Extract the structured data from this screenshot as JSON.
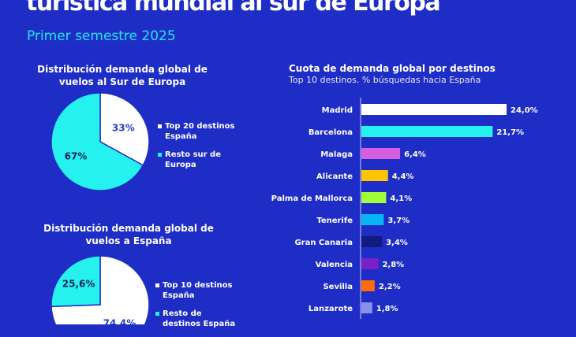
{
  "header": {
    "title": "turística mundial al sur de Europa",
    "subtitle": "Primer semestre 2025"
  },
  "colors": {
    "background": "#1f2dc7",
    "accent": "#25e6ef"
  },
  "chart_data": [
    {
      "type": "pie",
      "title": "Distribución demanda global de vuelos al Sur de Europa",
      "title_lines": [
        "Distribución demanda global de",
        "vuelos al Sur de Europa"
      ],
      "slices": [
        {
          "label": "Top 20 destinos España",
          "value": 33,
          "display": "33%",
          "color": "#ffffff",
          "label_color": "#2b3bc9",
          "legend_lines": [
            "Top 20 destinos",
            "España"
          ]
        },
        {
          "label": "Resto sur de Europa",
          "value": 67,
          "display": "67%",
          "color": "#25f1ef",
          "label_color": "#10205a",
          "legend_lines": [
            "Resto sur de",
            "Europa"
          ]
        }
      ]
    },
    {
      "type": "pie",
      "title": "Distribución demanda global de vuelos a España",
      "title_lines": [
        "Distribución demanda global de",
        "vuelos a España"
      ],
      "slices": [
        {
          "label": "Top 10 destinos España",
          "value": 74.4,
          "display": "74,4%",
          "color": "#ffffff",
          "label_color": "#2b3bc9",
          "legend_lines": [
            "Top 10 destinos",
            "España"
          ]
        },
        {
          "label": "Resto de destinos España",
          "value": 25.6,
          "display": "25,6%",
          "color": "#25f1ef",
          "label_color": "#10205a",
          "legend_lines": [
            "Resto de",
            "destinos España"
          ]
        }
      ]
    },
    {
      "type": "bar",
      "orientation": "horizontal",
      "title": "Cuota de demanda global por destinos",
      "subtitle": "Top 10 destinos. % búsquedas hacia España",
      "categories": [
        "Madrid",
        "Barcelona",
        "Malaga",
        "Alicante",
        "Palma de Mallorca",
        "Tenerife",
        "Gran Canaria",
        "Valencia",
        "Sevilla",
        "Lanzarote"
      ],
      "values": [
        24.0,
        21.7,
        6.4,
        4.4,
        4.1,
        3.7,
        3.4,
        2.8,
        2.2,
        1.8
      ],
      "value_labels": [
        "24,0%",
        "21,7%",
        "6,4%",
        "4,4%",
        "4,1%",
        "3,7%",
        "3,4%",
        "2,8%",
        "2,2%",
        "1,8%"
      ],
      "colors": [
        "#ffffff",
        "#25f1ef",
        "#d65ee0",
        "#ffc400",
        "#a0ff3a",
        "#05b6f2",
        "#121b7e",
        "#7a1fc7",
        "#ff6a0a",
        "#8a90ee"
      ],
      "xlim": [
        0,
        24
      ]
    }
  ]
}
